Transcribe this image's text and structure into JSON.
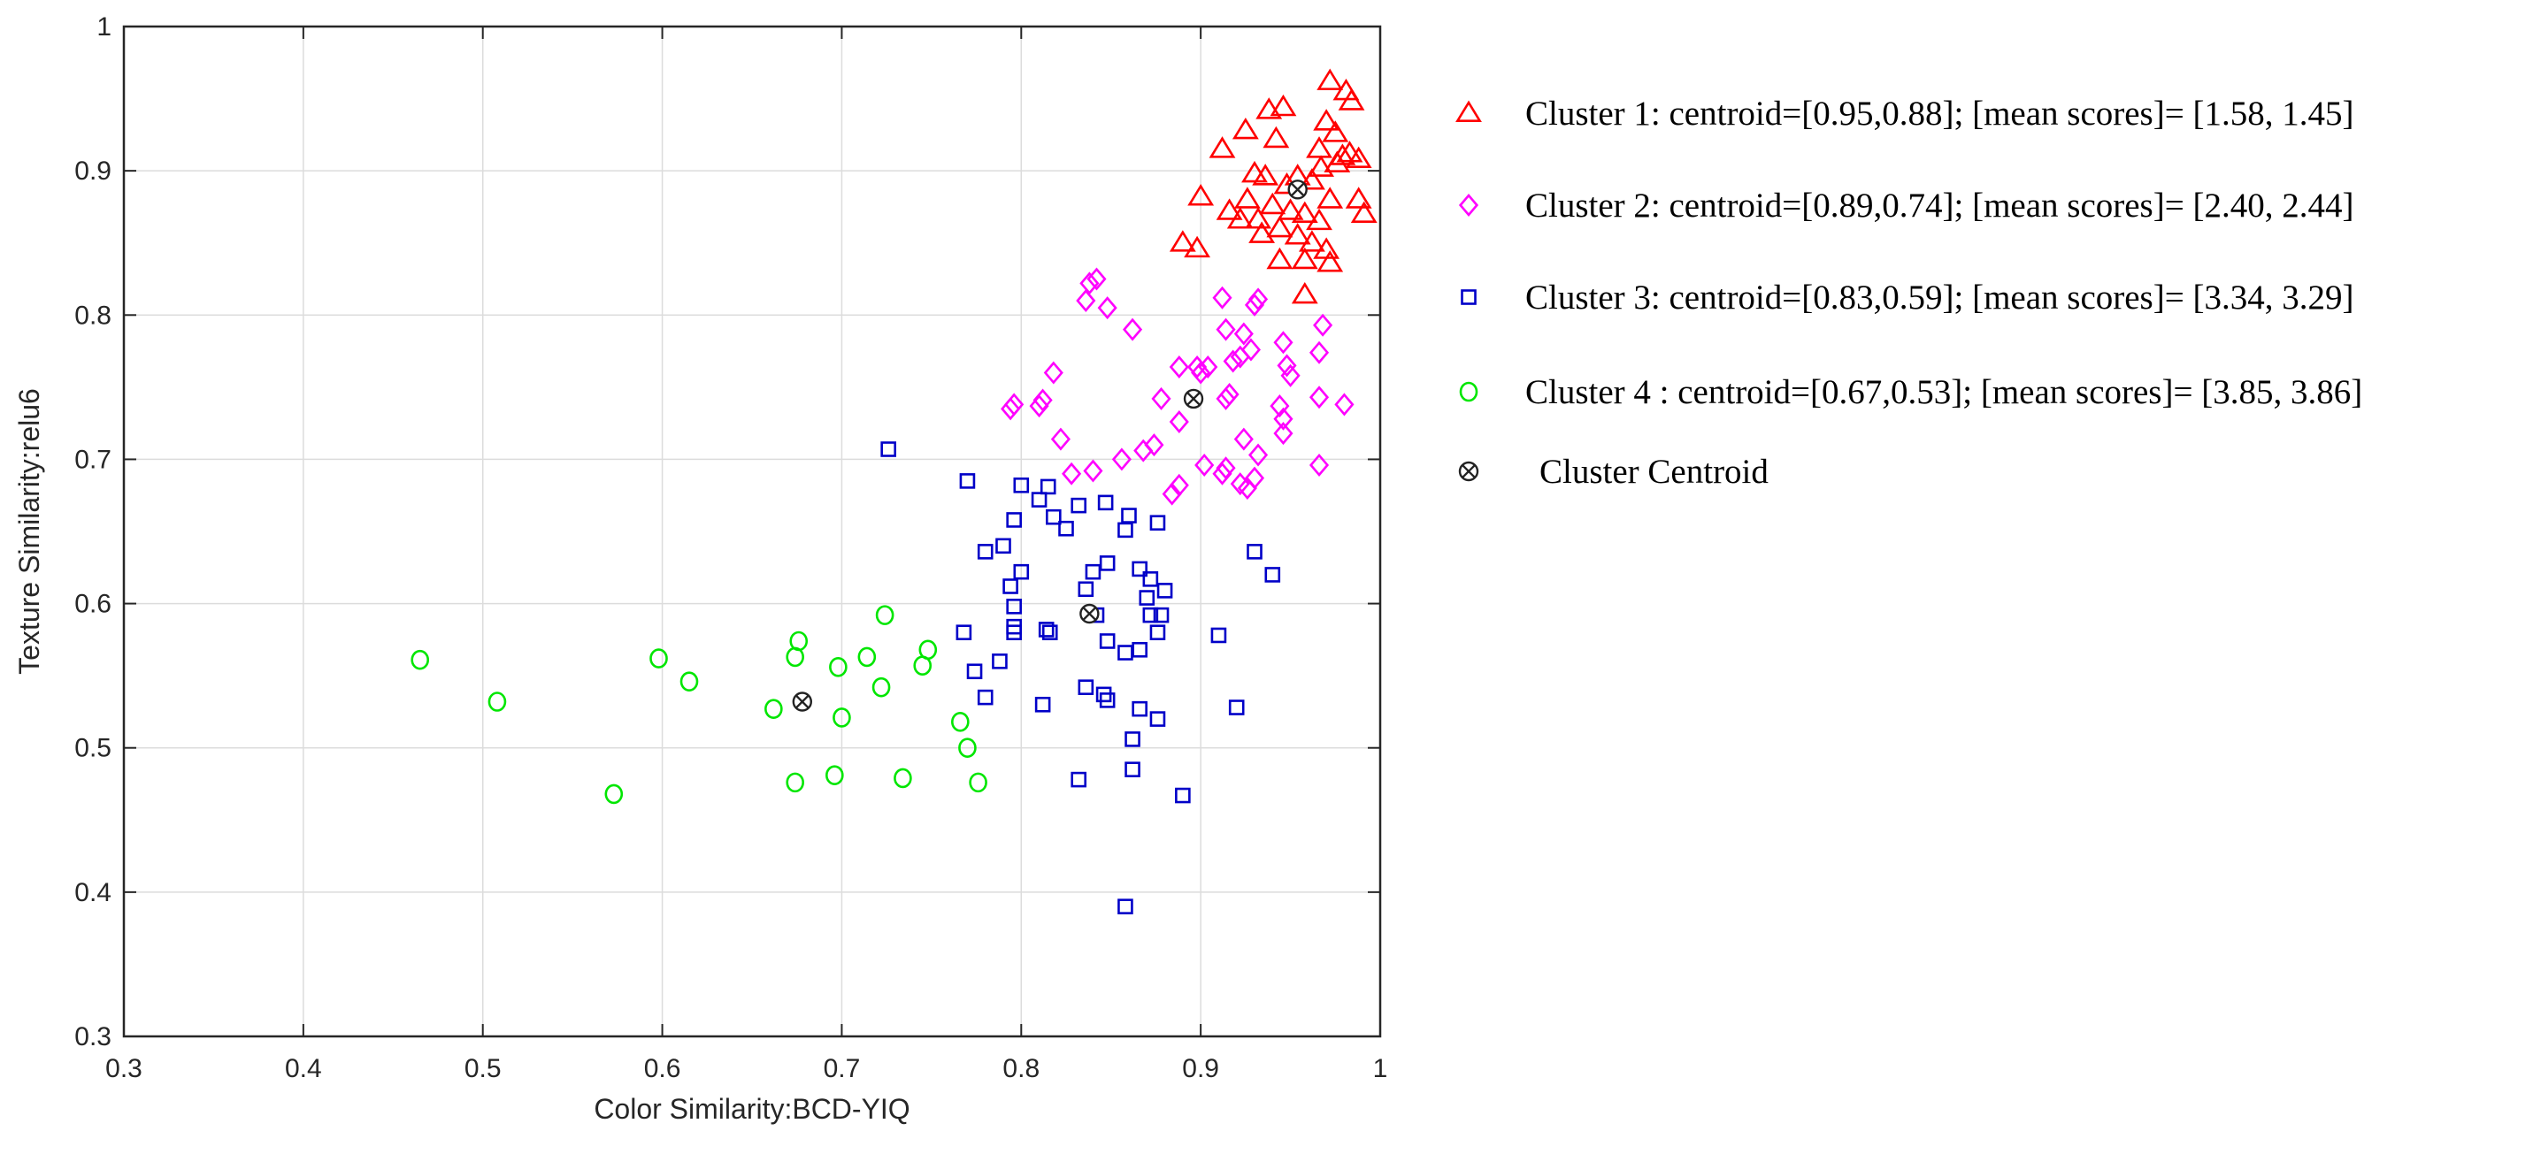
{
  "chart_data": {
    "type": "scatter",
    "title": "",
    "xlabel": "Color Similarity:BCD-YIQ",
    "ylabel": "Texture Similarity:relu6",
    "xlim": [
      0.3,
      1.0
    ],
    "ylim": [
      0.3,
      1.0
    ],
    "x_ticks": [
      0.3,
      0.4,
      0.5,
      0.6,
      0.7,
      0.8,
      0.9,
      1.0
    ],
    "y_ticks": [
      0.3,
      0.4,
      0.5,
      0.6,
      0.7,
      0.8,
      0.9,
      1.0
    ],
    "x_tick_labels": [
      "0.3",
      "0.4",
      "0.5",
      "0.6",
      "0.7",
      "0.8",
      "0.9",
      "1"
    ],
    "y_tick_labels": [
      "0.3",
      "0.4",
      "0.5",
      "0.6",
      "0.7",
      "0.8",
      "0.9",
      "1"
    ],
    "grid": true,
    "legend_position": "right",
    "series": [
      {
        "name": "Cluster 1",
        "label": "Cluster 1: centroid=[0.95,0.88]; [mean scores]= [1.58, 1.45]",
        "marker": "triangle",
        "color": "#ff0000",
        "points": [
          [
            0.972,
            0.962
          ],
          [
            0.981,
            0.955
          ],
          [
            0.984,
            0.948
          ],
          [
            0.946,
            0.944
          ],
          [
            0.938,
            0.942
          ],
          [
            0.97,
            0.934
          ],
          [
            0.975,
            0.926
          ],
          [
            0.925,
            0.928
          ],
          [
            0.942,
            0.922
          ],
          [
            0.912,
            0.915
          ],
          [
            0.966,
            0.915
          ],
          [
            0.983,
            0.912
          ],
          [
            0.979,
            0.91
          ],
          [
            0.988,
            0.908
          ],
          [
            0.976,
            0.905
          ],
          [
            0.967,
            0.902
          ],
          [
            0.93,
            0.898
          ],
          [
            0.936,
            0.896
          ],
          [
            0.954,
            0.896
          ],
          [
            0.962,
            0.893
          ],
          [
            0.948,
            0.89
          ],
          [
            0.9,
            0.882
          ],
          [
            0.926,
            0.88
          ],
          [
            0.972,
            0.88
          ],
          [
            0.988,
            0.88
          ],
          [
            0.94,
            0.876
          ],
          [
            0.916,
            0.872
          ],
          [
            0.95,
            0.872
          ],
          [
            0.958,
            0.87
          ],
          [
            0.991,
            0.87
          ],
          [
            0.922,
            0.866
          ],
          [
            0.932,
            0.866
          ],
          [
            0.966,
            0.865
          ],
          [
            0.944,
            0.86
          ],
          [
            0.934,
            0.856
          ],
          [
            0.954,
            0.855
          ],
          [
            0.962,
            0.85
          ],
          [
            0.89,
            0.85
          ],
          [
            0.898,
            0.846
          ],
          [
            0.97,
            0.845
          ],
          [
            0.958,
            0.838
          ],
          [
            0.972,
            0.836
          ],
          [
            0.944,
            0.838
          ],
          [
            0.958,
            0.814
          ]
        ]
      },
      {
        "name": "Cluster 2",
        "label": "Cluster 2: centroid=[0.89,0.74]; [mean scores]= [2.40, 2.44]",
        "marker": "diamond",
        "color": "#ff00ff",
        "points": [
          [
            0.842,
            0.825
          ],
          [
            0.838,
            0.822
          ],
          [
            0.836,
            0.81
          ],
          [
            0.848,
            0.805
          ],
          [
            0.932,
            0.811
          ],
          [
            0.93,
            0.807
          ],
          [
            0.862,
            0.79
          ],
          [
            0.912,
            0.812
          ],
          [
            0.968,
            0.793
          ],
          [
            0.914,
            0.79
          ],
          [
            0.924,
            0.787
          ],
          [
            0.946,
            0.781
          ],
          [
            0.928,
            0.776
          ],
          [
            0.966,
            0.774
          ],
          [
            0.922,
            0.771
          ],
          [
            0.918,
            0.768
          ],
          [
            0.904,
            0.764
          ],
          [
            0.888,
            0.764
          ],
          [
            0.948,
            0.765
          ],
          [
            0.9,
            0.76
          ],
          [
            0.95,
            0.758
          ],
          [
            0.818,
            0.76
          ],
          [
            0.916,
            0.745
          ],
          [
            0.914,
            0.742
          ],
          [
            0.966,
            0.743
          ],
          [
            0.98,
            0.738
          ],
          [
            0.878,
            0.742
          ],
          [
            0.812,
            0.741
          ],
          [
            0.81,
            0.737
          ],
          [
            0.796,
            0.738
          ],
          [
            0.794,
            0.735
          ],
          [
            0.944,
            0.737
          ],
          [
            0.946,
            0.728
          ],
          [
            0.888,
            0.726
          ],
          [
            0.946,
            0.718
          ],
          [
            0.822,
            0.714
          ],
          [
            0.924,
            0.714
          ],
          [
            0.874,
            0.71
          ],
          [
            0.868,
            0.706
          ],
          [
            0.856,
            0.7
          ],
          [
            0.932,
            0.703
          ],
          [
            0.84,
            0.692
          ],
          [
            0.828,
            0.69
          ],
          [
            0.914,
            0.694
          ],
          [
            0.912,
            0.69
          ],
          [
            0.93,
            0.687
          ],
          [
            0.922,
            0.683
          ],
          [
            0.926,
            0.68
          ],
          [
            0.888,
            0.682
          ],
          [
            0.884,
            0.676
          ],
          [
            0.966,
            0.696
          ],
          [
            0.902,
            0.696
          ],
          [
            0.898,
            0.764
          ]
        ]
      },
      {
        "name": "Cluster 3",
        "label": "Cluster 3:  centroid=[0.83,0.59]; [mean scores]= [3.34, 3.29]",
        "marker": "square",
        "color": "#0000c8",
        "points": [
          [
            0.726,
            0.707
          ],
          [
            0.77,
            0.685
          ],
          [
            0.8,
            0.682
          ],
          [
            0.815,
            0.681
          ],
          [
            0.81,
            0.672
          ],
          [
            0.832,
            0.668
          ],
          [
            0.847,
            0.67
          ],
          [
            0.818,
            0.66
          ],
          [
            0.796,
            0.658
          ],
          [
            0.825,
            0.652
          ],
          [
            0.858,
            0.651
          ],
          [
            0.876,
            0.656
          ],
          [
            0.86,
            0.661
          ],
          [
            0.8,
            0.622
          ],
          [
            0.79,
            0.64
          ],
          [
            0.78,
            0.636
          ],
          [
            0.794,
            0.612
          ],
          [
            0.84,
            0.622
          ],
          [
            0.848,
            0.628
          ],
          [
            0.866,
            0.624
          ],
          [
            0.872,
            0.617
          ],
          [
            0.88,
            0.609
          ],
          [
            0.87,
            0.604
          ],
          [
            0.836,
            0.61
          ],
          [
            0.93,
            0.636
          ],
          [
            0.94,
            0.62
          ],
          [
            0.796,
            0.598
          ],
          [
            0.842,
            0.592
          ],
          [
            0.878,
            0.592
          ],
          [
            0.872,
            0.592
          ],
          [
            0.814,
            0.582
          ],
          [
            0.816,
            0.58
          ],
          [
            0.796,
            0.584
          ],
          [
            0.796,
            0.58
          ],
          [
            0.768,
            0.58
          ],
          [
            0.91,
            0.578
          ],
          [
            0.876,
            0.58
          ],
          [
            0.848,
            0.574
          ],
          [
            0.858,
            0.566
          ],
          [
            0.866,
            0.568
          ],
          [
            0.788,
            0.56
          ],
          [
            0.774,
            0.553
          ],
          [
            0.836,
            0.542
          ],
          [
            0.846,
            0.537
          ],
          [
            0.848,
            0.533
          ],
          [
            0.812,
            0.53
          ],
          [
            0.78,
            0.535
          ],
          [
            0.866,
            0.527
          ],
          [
            0.92,
            0.528
          ],
          [
            0.876,
            0.52
          ],
          [
            0.862,
            0.506
          ],
          [
            0.862,
            0.485
          ],
          [
            0.832,
            0.478
          ],
          [
            0.89,
            0.467
          ],
          [
            0.858,
            0.39
          ]
        ]
      },
      {
        "name": "Cluster 4",
        "label": "Cluster 4 : centroid=[0.67,0.53]; [mean scores]= [3.85, 3.86]",
        "marker": "circle",
        "color": "#00e600",
        "points": [
          [
            0.465,
            0.561
          ],
          [
            0.508,
            0.532
          ],
          [
            0.573,
            0.468
          ],
          [
            0.598,
            0.562
          ],
          [
            0.615,
            0.546
          ],
          [
            0.662,
            0.527
          ],
          [
            0.676,
            0.574
          ],
          [
            0.674,
            0.563
          ],
          [
            0.698,
            0.556
          ],
          [
            0.7,
            0.521
          ],
          [
            0.714,
            0.563
          ],
          [
            0.722,
            0.542
          ],
          [
            0.724,
            0.592
          ],
          [
            0.745,
            0.557
          ],
          [
            0.748,
            0.568
          ],
          [
            0.766,
            0.518
          ],
          [
            0.77,
            0.5
          ],
          [
            0.776,
            0.476
          ],
          [
            0.734,
            0.479
          ],
          [
            0.696,
            0.481
          ],
          [
            0.674,
            0.476
          ]
        ]
      },
      {
        "name": "Cluster Centroid",
        "label": "Cluster Centroid",
        "marker": "circle-x",
        "color": "#222222",
        "points": [
          [
            0.954,
            0.887
          ],
          [
            0.896,
            0.742
          ],
          [
            0.838,
            0.593
          ],
          [
            0.678,
            0.532
          ]
        ]
      }
    ]
  }
}
